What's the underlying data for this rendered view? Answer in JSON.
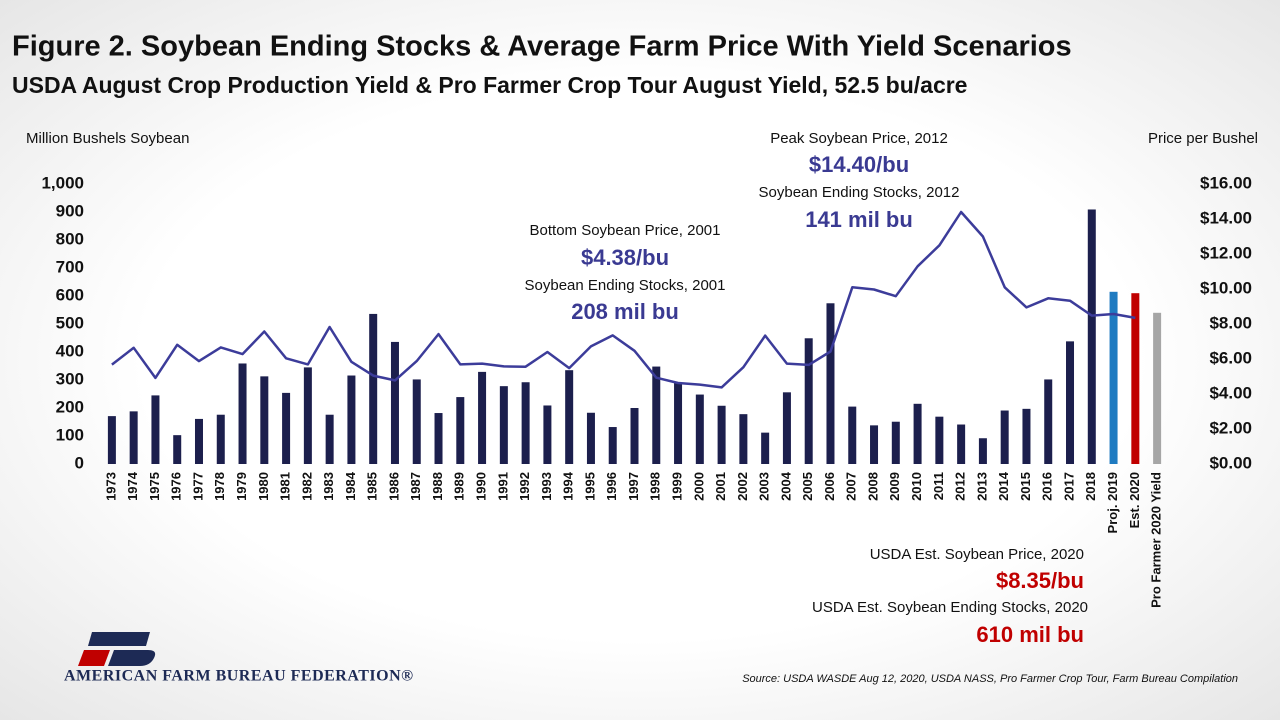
{
  "chart_data": {
    "type": "bar_line",
    "title": "Figure 2. Soybean Ending Stocks & Average Farm Price With Yield Scenarios",
    "subtitle": "USDA August Crop Production Yield & Pro Farmer Crop Tour August Yield, 52.5 bu/acre",
    "y_label": "Million Bushels Soybean",
    "y2_label": "Price per Bushel",
    "categories": [
      "1973",
      "1974",
      "1975",
      "1976",
      "1977",
      "1978",
      "1979",
      "1980",
      "1981",
      "1982",
      "1983",
      "1984",
      "1985",
      "1986",
      "1987",
      "1988",
      "1989",
      "1990",
      "1991",
      "1992",
      "1993",
      "1994",
      "1995",
      "1996",
      "1997",
      "1998",
      "1999",
      "2000",
      "2001",
      "2002",
      "2003",
      "2004",
      "2005",
      "2006",
      "2007",
      "2008",
      "2009",
      "2010",
      "2011",
      "2012",
      "2013",
      "2014",
      "2015",
      "2016",
      "2017",
      "2018",
      "Proj. 2019",
      "Est. 2020",
      "Pro Farmer 2020 Yield"
    ],
    "bars": {
      "values": [
        171,
        188,
        245,
        103,
        161,
        176,
        359,
        313,
        254,
        345,
        176,
        316,
        536,
        436,
        302,
        182,
        239,
        329,
        278,
        292,
        209,
        335,
        183,
        132,
        200,
        348,
        290,
        248,
        208,
        178,
        112,
        256,
        449,
        574,
        205,
        138,
        151,
        215,
        169,
        141,
        92,
        191,
        197,
        302,
        438,
        909,
        615,
        610,
        540
      ],
      "colors": [
        "#1c1f4d",
        "#1c1f4d",
        "#1c1f4d",
        "#1c1f4d",
        "#1c1f4d",
        "#1c1f4d",
        "#1c1f4d",
        "#1c1f4d",
        "#1c1f4d",
        "#1c1f4d",
        "#1c1f4d",
        "#1c1f4d",
        "#1c1f4d",
        "#1c1f4d",
        "#1c1f4d",
        "#1c1f4d",
        "#1c1f4d",
        "#1c1f4d",
        "#1c1f4d",
        "#1c1f4d",
        "#1c1f4d",
        "#1c1f4d",
        "#1c1f4d",
        "#1c1f4d",
        "#1c1f4d",
        "#1c1f4d",
        "#1c1f4d",
        "#1c1f4d",
        "#1c1f4d",
        "#1c1f4d",
        "#1c1f4d",
        "#1c1f4d",
        "#1c1f4d",
        "#1c1f4d",
        "#1c1f4d",
        "#1c1f4d",
        "#1c1f4d",
        "#1c1f4d",
        "#1c1f4d",
        "#1c1f4d",
        "#1c1f4d",
        "#1c1f4d",
        "#1c1f4d",
        "#1c1f4d",
        "#1c1f4d",
        "#1c1f4d",
        "#1f7bc1",
        "#c00000",
        "#a6a6a6"
      ]
    },
    "line": {
      "axis": "y2",
      "color": "#3c3c9a",
      "values": [
        5.68,
        6.64,
        4.92,
        6.81,
        5.88,
        6.66,
        6.28,
        7.57,
        6.04,
        5.69,
        7.83,
        5.84,
        5.05,
        4.78,
        5.88,
        7.42,
        5.69,
        5.74,
        5.58,
        5.56,
        6.4,
        5.48,
        6.72,
        7.35,
        6.47,
        4.93,
        4.63,
        4.54,
        4.38,
        5.53,
        7.34,
        5.74,
        5.66,
        6.43,
        10.1,
        9.97,
        9.59,
        11.3,
        12.5,
        14.4,
        13.0,
        10.1,
        8.95,
        9.47,
        9.33,
        8.48,
        8.57,
        8.35,
        null
      ]
    },
    "ylim": [
      0,
      1000
    ],
    "yticks": [
      0,
      100,
      200,
      300,
      400,
      500,
      600,
      700,
      800,
      900,
      {
        "value": 1000,
        "label": "1,000"
      }
    ],
    "y2lim": [
      0,
      16
    ],
    "y2ticks": [
      {
        "value": 0,
        "label": "$0.00"
      },
      {
        "value": 2,
        "label": "$2.00"
      },
      {
        "value": 4,
        "label": "$4.00"
      },
      {
        "value": 6,
        "label": "$6.00"
      },
      {
        "value": 8,
        "label": "$8.00"
      },
      {
        "value": 10,
        "label": "$10.00"
      },
      {
        "value": 12,
        "label": "$12.00"
      },
      {
        "value": 14,
        "label": "$14.00"
      },
      {
        "value": 16,
        "label": "$16.00"
      }
    ],
    "annotations": [
      "Peak Soybean Price, 2012",
      "$14.40/bu",
      "Soybean Ending Stocks, 2012",
      "141 mil bu",
      "Bottom Soybean Price, 2001",
      "$4.38/bu",
      "Soybean Ending Stocks, 2001",
      "208 mil bu",
      "USDA Est. Soybean Price, 2020",
      "$8.35/bu",
      "USDA Est. Soybean Ending Stocks, 2020",
      "610 mil bu"
    ],
    "source": "Source: USDA WASDE Aug 12, 2020, USDA NASS, Pro Farmer Crop Tour, Farm Bureau Compilation",
    "logo": "AMERICAN FARM BUREAU FEDERATION®"
  }
}
